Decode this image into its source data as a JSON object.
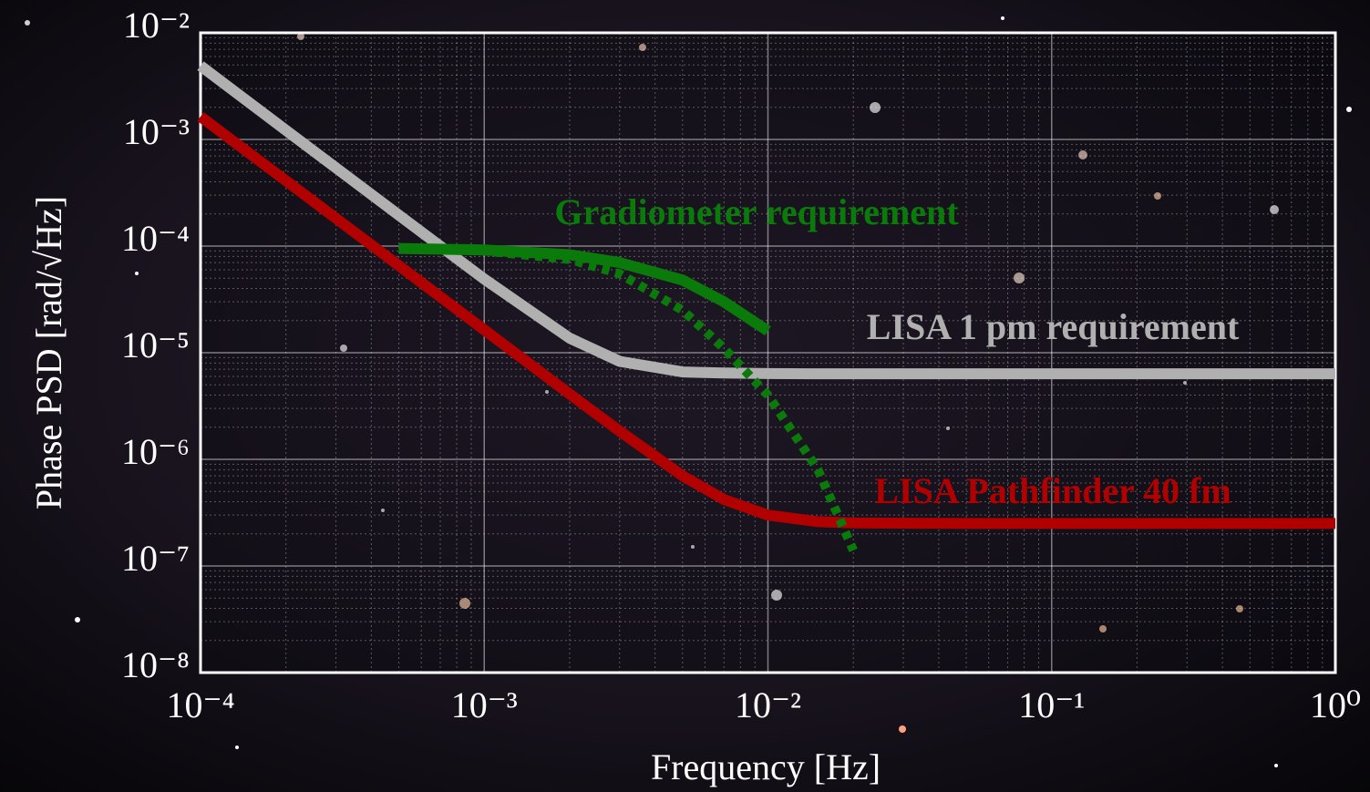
{
  "chart_data": {
    "type": "line",
    "x_label": "Frequency [Hz]",
    "y_label": "Phase PSD [rad/√Hz]",
    "log_x": true,
    "log_y": true,
    "grid": true,
    "minor_grid": true,
    "xlim": [
      0.0001,
      1
    ],
    "ylim": [
      1e-08,
      0.01
    ],
    "xticks": [
      {
        "value": 0.0001,
        "label": "10⁻⁴"
      },
      {
        "value": 0.001,
        "label": "10⁻³"
      },
      {
        "value": 0.01,
        "label": "10⁻²"
      },
      {
        "value": 0.1,
        "label": "10⁻¹"
      },
      {
        "value": 1,
        "label": "10⁰"
      }
    ],
    "yticks": [
      {
        "value": 1e-08,
        "label": "10⁻⁸"
      },
      {
        "value": 1e-07,
        "label": "10⁻⁷"
      },
      {
        "value": 1e-06,
        "label": "10⁻⁶"
      },
      {
        "value": 1e-05,
        "label": "10⁻⁵"
      },
      {
        "value": 0.0001,
        "label": "10⁻⁴"
      },
      {
        "value": 0.001,
        "label": "10⁻³"
      },
      {
        "value": 0.01,
        "label": "10⁻²"
      }
    ],
    "x": [
      0.0001,
      0.0002,
      0.0005,
      0.001,
      0.002,
      0.003,
      0.005,
      0.007,
      0.01,
      0.015,
      0.02,
      0.05,
      0.1,
      1
    ],
    "series": [
      {
        "name": "LISA 1 pm requirement",
        "color": "#b0b0b0",
        "style": "solid",
        "values": [
          0.0049,
          0.00122,
          0.000195,
          4.9e-05,
          1.37e-05,
          8.3e-06,
          6.6e-06,
          6.45e-06,
          6.37e-06,
          6.35e-06,
          6.35e-06,
          6.35e-06,
          6.35e-06,
          6.35e-06
        ]
      },
      {
        "name": "LISA Pathfinder 40 fm",
        "color": "#b00000",
        "style": "solid",
        "values": [
          0.00164,
          0.00041,
          6.56e-05,
          1.64e-05,
          4.1e-06,
          1.84e-06,
          7e-07,
          4.2e-07,
          3e-07,
          2.6e-07,
          2.53e-07,
          2.5e-07,
          2.5e-07,
          2.5e-07
        ]
      },
      {
        "name": "Gradiometer requirement",
        "color": "#0a7a0a",
        "style": "solid",
        "values": [
          null,
          null,
          9.5e-05,
          9.2e-05,
          8.3e-05,
          7e-05,
          4.8e-05,
          3e-05,
          1.6e-05,
          null,
          null,
          null,
          null,
          null
        ]
      },
      {
        "color": "#0a7a0a",
        "style": "dotted",
        "values": [
          null,
          null,
          9.5e-05,
          9e-05,
          7.5e-05,
          5.5e-05,
          2.5e-05,
          1.1e-05,
          4e-06,
          8e-07,
          1.4e-07,
          null,
          null,
          null
        ]
      }
    ]
  }
}
